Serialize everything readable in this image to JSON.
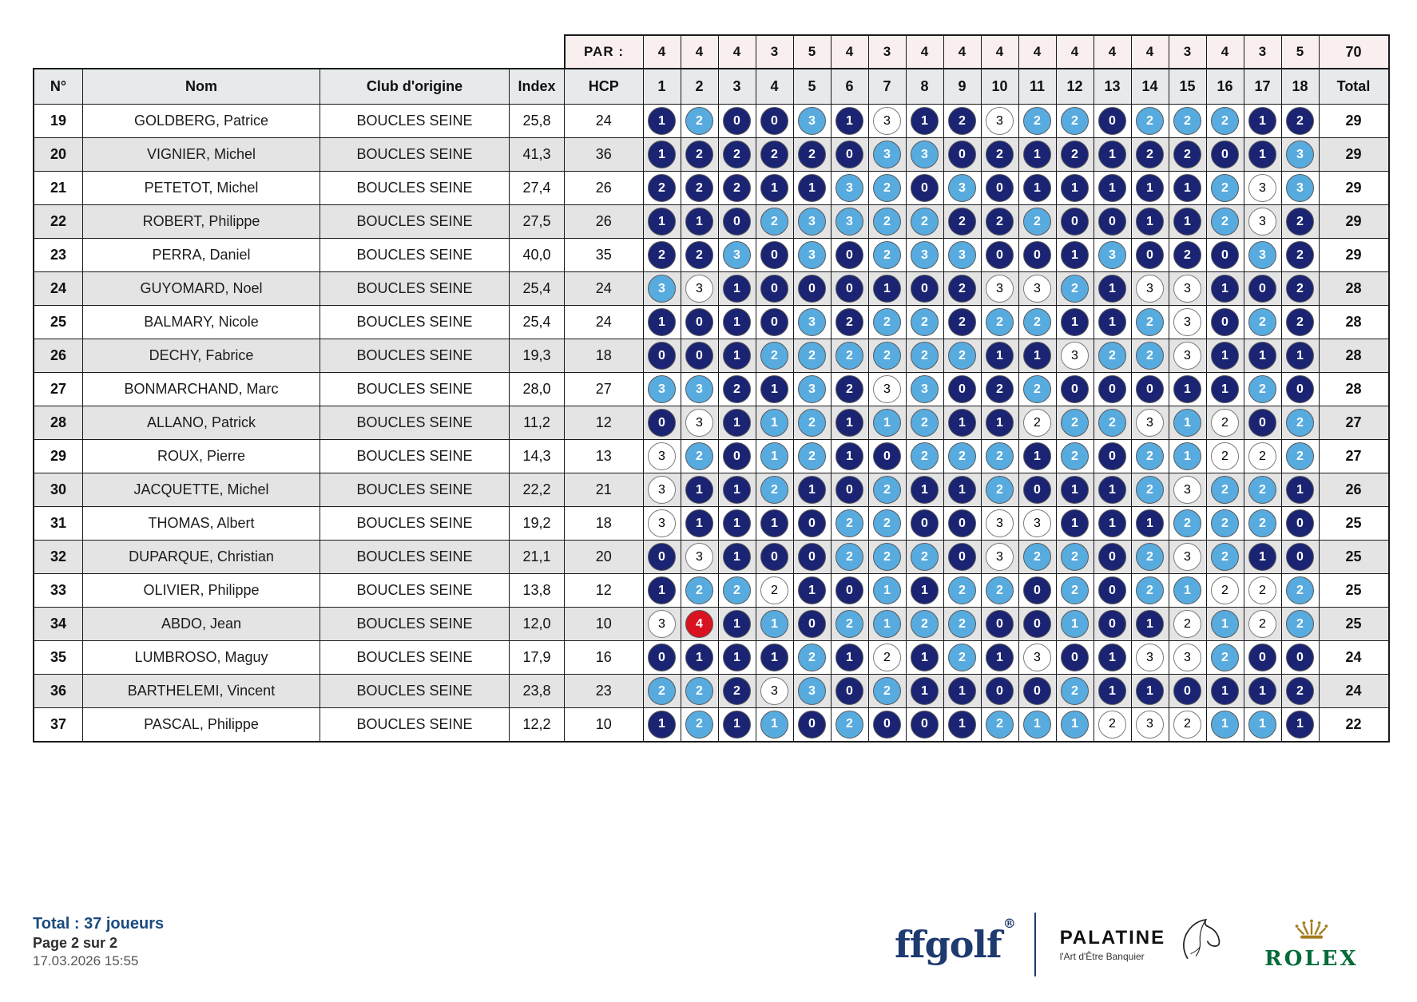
{
  "par": {
    "label": "PAR :",
    "values": [
      4,
      4,
      4,
      3,
      5,
      4,
      3,
      4,
      4,
      4,
      4,
      4,
      4,
      4,
      3,
      4,
      3,
      5
    ],
    "total": "70"
  },
  "columns": {
    "num": "N°",
    "name": "Nom",
    "club": "Club d'origine",
    "index": "Index",
    "hcp": "HCP",
    "holes": [
      "1",
      "2",
      "3",
      "4",
      "5",
      "6",
      "7",
      "8",
      "9",
      "10",
      "11",
      "12",
      "13",
      "14",
      "15",
      "16",
      "17",
      "18"
    ],
    "total": "Total"
  },
  "legend_colors": {
    "dark_navy": "#1b2472",
    "light_blue": "#57abdf",
    "white": "#ffffff",
    "red": "#d8131f"
  },
  "players": [
    {
      "num": "19",
      "name": "GOLDBERG, Patrice",
      "club": "BOUCLES SEINE",
      "index": "25,8",
      "hcp": "24",
      "scores": "120031312322022212",
      "colors": "dlddldwddwlldllldd",
      "total": "29"
    },
    {
      "num": "20",
      "name": "VIGNIER, Michel",
      "club": "BOUCLES SEINE",
      "index": "41,3",
      "hcp": "36",
      "scores": "122220330212122013",
      "colors": "ddddddlldddddddddl",
      "total": "29"
    },
    {
      "num": "21",
      "name": "PETETOT, Michel",
      "club": "BOUCLES SEINE",
      "index": "27,4",
      "hcp": "26",
      "scores": "222113203011111233",
      "colors": "dddddlldlddddddlwl",
      "total": "29"
    },
    {
      "num": "22",
      "name": "ROBERT, Philippe",
      "club": "BOUCLES SEINE",
      "index": "27,5",
      "hcp": "26",
      "scores": "110233222220011232",
      "colors": "dddllllldd lddddlwd",
      "total": "29"
    },
    {
      "num": "23",
      "name": "PERRA, Daniel",
      "club": "BOUCLES SEINE",
      "index": "40,0",
      "hcp": "35",
      "scores": "223030233001302032",
      "colors": "ddldldllldddldddld",
      "total": "29"
    },
    {
      "num": "24",
      "name": "GUYOMARD, Noel",
      "club": "BOUCLES SEINE",
      "index": "25,4",
      "hcp": "24",
      "scores": "331000102332133102",
      "colors": "lwdddddddwwldwwddd",
      "total": "28"
    },
    {
      "num": "25",
      "name": "BALMARY, Nicole",
      "club": "BOUCLES SEINE",
      "index": "25,4",
      "hcp": "24",
      "scores": "101032222221123022",
      "colors": "ddddldlldllddlwdld",
      "total": "28"
    },
    {
      "num": "26",
      "name": "DECHY, Fabrice",
      "club": "BOUCLES SEINE",
      "index": "19,3",
      "hcp": "18",
      "scores": "001222222113223111",
      "colors": "dddllllllddwllwddd",
      "total": "28"
    },
    {
      "num": "27",
      "name": "BONMARCHAND, Marc",
      "club": "BOUCLES SEINE",
      "index": "28,0",
      "hcp": "27",
      "scores": "332132330220001120",
      "colors": "llddldwlddldddddld",
      "total": "28"
    },
    {
      "num": "28",
      "name": "ALLANO, Patrick",
      "club": "BOUCLES SEINE",
      "index": "11,2",
      "hcp": "12",
      "scores": "031121121122231202",
      "colors": "dwdlldllddwllwlwdl",
      "total": "27"
    },
    {
      "num": "29",
      "name": "ROUX, Pierre",
      "club": "BOUCLES SEINE",
      "index": "14,3",
      "hcp": "13",
      "scores": "320121022212021222",
      "colors": "wldllddllldldllwwl",
      "total": "27"
    },
    {
      "num": "30",
      "name": "JACQUETTE, Michel",
      "club": "BOUCLES SEINE",
      "index": "22,2",
      "hcp": "21",
      "scores": "311210211201123221",
      "colors": "wddlddlddldddlwlld",
      "total": "26"
    },
    {
      "num": "31",
      "name": "THOMAS, Albert",
      "club": "BOUCLES SEINE",
      "index": "19,2",
      "hcp": "18",
      "scores": "311102200331112220",
      "colors": "wddddllddwwdddllld",
      "total": "25"
    },
    {
      "num": "32",
      "name": "DUPARQUE, Christian",
      "club": "BOUCLES SEINE",
      "index": "21,1",
      "hcp": "20",
      "scores": "031002220322023210",
      "colors": "dwdddllldwlldlwldd",
      "total": "25"
    },
    {
      "num": "33",
      "name": "OLIVIER, Philippe",
      "club": "BOUCLES SEINE",
      "index": "13,8",
      "hcp": "12",
      "scores": "122210112202021222",
      "colors": "dllwddldlldldllwwl",
      "total": "25"
    },
    {
      "num": "34",
      "name": "ABDO, Jean",
      "club": "BOUCLES SEINE",
      "index": "12,0",
      "hcp": "10",
      "scores": "341102122001012122",
      "colors": "wrdldllllddlddwlwl",
      "total": "25"
    },
    {
      "num": "35",
      "name": "LUMBROSO, Maguy",
      "club": "BOUCLES SEINE",
      "index": "17,9",
      "hcp": "16",
      "scores": "011121212130133200",
      "colors": "ddddldwdldwddwwldd",
      "total": "24"
    },
    {
      "num": "36",
      "name": "BARTHELEMI, Vincent",
      "club": "BOUCLES SEINE",
      "index": "23,8",
      "hcp": "23",
      "scores": "222330211002110112",
      "colors": "lldwldlddddldddddd",
      "total": "24"
    },
    {
      "num": "37",
      "name": "PASCAL, Philippe",
      "club": "BOUCLES SEINE",
      "index": "12,2",
      "hcp": "10",
      "scores": "121102001211232111",
      "colors": "dldldldddlllwwwlld",
      "total": "22"
    }
  ],
  "footer": {
    "total_label": "Total :  37 joueurs",
    "page": "Page 2 sur 2",
    "timestamp": "17.03.2026 15:55"
  },
  "logos": {
    "ffgolf": "ffgolf",
    "ffgolf_reg": "®",
    "palatine": "PALATINE",
    "palatine_sub": "l'Art d'Être Banquier",
    "rolex": "ROLEX"
  }
}
